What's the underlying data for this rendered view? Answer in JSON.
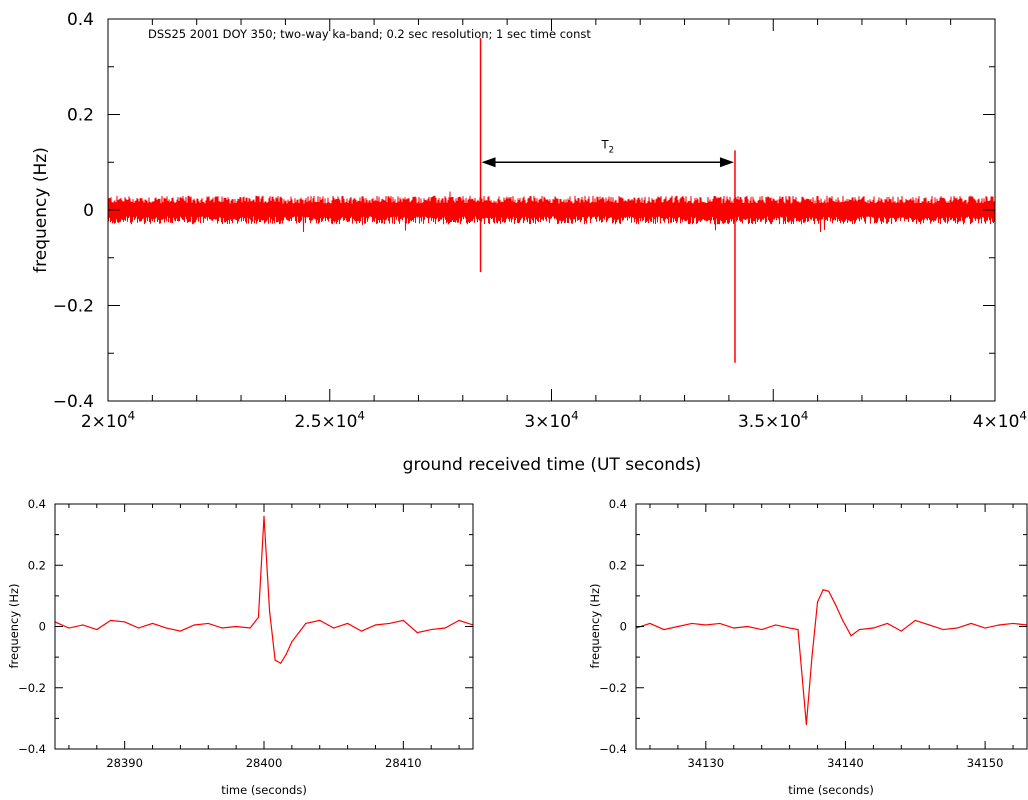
{
  "chart_data": [
    {
      "type": "line",
      "id": "main",
      "annotation": "DSS25 2001 DOY 350; two-way ka-band; 0.2 sec resolution; 1 sec time const",
      "xlabel": "ground received time (UT seconds)",
      "ylabel": "frequency (Hz)",
      "xlim": [
        20000,
        40000
      ],
      "ylim": [
        -0.4,
        0.4
      ],
      "xticks": [
        {
          "value": 20000,
          "mantissa": "2",
          "exp": "4"
        },
        {
          "value": 25000,
          "mantissa": "2.5",
          "exp": "4"
        },
        {
          "value": 30000,
          "mantissa": "3",
          "exp": "4"
        },
        {
          "value": 35000,
          "mantissa": "3.5",
          "exp": "4"
        },
        {
          "value": 40000,
          "mantissa": "4",
          "exp": "4"
        }
      ],
      "yticks": [
        {
          "value": 0.4,
          "label": "0.4"
        },
        {
          "value": 0.2,
          "label": "0.2"
        },
        {
          "value": 0,
          "label": "0"
        },
        {
          "value": -0.2,
          "label": "−0.2"
        },
        {
          "value": -0.4,
          "label": "−0.4"
        }
      ],
      "noise_band": {
        "x_start": 20000,
        "x_end": 40000,
        "amplitude": 0.03
      },
      "spikes": [
        {
          "x": 28400,
          "y_max": 0.36,
          "y_min": -0.13
        },
        {
          "x": 34137,
          "y_max": 0.125,
          "y_min": -0.32
        }
      ],
      "interval_annotation": {
        "label_main": "T",
        "label_sub": "2",
        "x_start": 28400,
        "x_end": 34137,
        "y": 0.1
      },
      "series_color": "#ff0000"
    },
    {
      "type": "line",
      "id": "zoom1",
      "xlabel": "time (seconds)",
      "ylabel": "frequency (Hz)",
      "xlim": [
        28385,
        28415
      ],
      "ylim": [
        -0.4,
        0.4
      ],
      "xticks": [
        {
          "value": 28390,
          "label": "28390"
        },
        {
          "value": 28400,
          "label": "28400"
        },
        {
          "value": 28410,
          "label": "28410"
        }
      ],
      "yticks": [
        {
          "value": 0.4,
          "label": "0.4"
        },
        {
          "value": 0.2,
          "label": "0.2"
        },
        {
          "value": 0,
          "label": "0"
        },
        {
          "value": -0.2,
          "label": "−0.2"
        },
        {
          "value": -0.4,
          "label": "−0.4"
        }
      ],
      "x": [
        28385,
        28386,
        28387,
        28388,
        28389,
        28390,
        28391,
        28392,
        28393,
        28394,
        28395,
        28396,
        28397,
        28398,
        28399,
        28399.6,
        28400,
        28400.4,
        28400.8,
        28401.2,
        28401.6,
        28402,
        28402.5,
        28403,
        28404,
        28405,
        28406,
        28407,
        28408,
        28409,
        28410,
        28411,
        28412,
        28413,
        28414,
        28415
      ],
      "y": [
        0.015,
        -0.005,
        0.005,
        -0.01,
        0.02,
        0.015,
        -0.005,
        0.01,
        -0.005,
        -0.015,
        0.005,
        0.01,
        -0.005,
        0,
        -0.005,
        0.03,
        0.36,
        0.05,
        -0.11,
        -0.12,
        -0.09,
        -0.05,
        -0.02,
        0.01,
        0.02,
        -0.005,
        0.01,
        -0.015,
        0.005,
        0.01,
        0.02,
        -0.02,
        -0.01,
        -0.005,
        0.02,
        0.005
      ],
      "series_color": "#ff0000"
    },
    {
      "type": "line",
      "id": "zoom2",
      "xlabel": "time (seconds)",
      "ylabel": "frequency (Hz)",
      "xlim": [
        34125,
        34153
      ],
      "ylim": [
        -0.4,
        0.4
      ],
      "xticks": [
        {
          "value": 34130,
          "label": "34130"
        },
        {
          "value": 34140,
          "label": "34140"
        },
        {
          "value": 34150,
          "label": "34150"
        }
      ],
      "yticks": [
        {
          "value": 0.4,
          "label": "0.4"
        },
        {
          "value": 0.2,
          "label": "0.2"
        },
        {
          "value": 0,
          "label": "0"
        },
        {
          "value": -0.2,
          "label": "−0.2"
        },
        {
          "value": -0.4,
          "label": "−0.4"
        }
      ],
      "x": [
        34125,
        34126,
        34127,
        34128,
        34129,
        34130,
        34131,
        34132,
        34133,
        34134,
        34135,
        34136,
        34136.6,
        34137.2,
        34137.6,
        34138,
        34138.4,
        34138.8,
        34139.3,
        34139.8,
        34140.4,
        34141,
        34142,
        34143,
        34144,
        34145,
        34146,
        34147,
        34148,
        34149,
        34150,
        34151,
        34152,
        34153
      ],
      "y": [
        -0.005,
        0.01,
        -0.01,
        0,
        0.01,
        0.005,
        0.01,
        -0.005,
        0,
        -0.01,
        0.005,
        -0.005,
        -0.01,
        -0.32,
        -0.1,
        0.08,
        0.12,
        0.115,
        0.07,
        0.02,
        -0.03,
        -0.01,
        -0.005,
        0.01,
        -0.015,
        0.02,
        0.005,
        -0.01,
        -0.005,
        0.01,
        -0.005,
        0.005,
        0.01,
        0.005
      ],
      "series_color": "#ff0000"
    }
  ]
}
